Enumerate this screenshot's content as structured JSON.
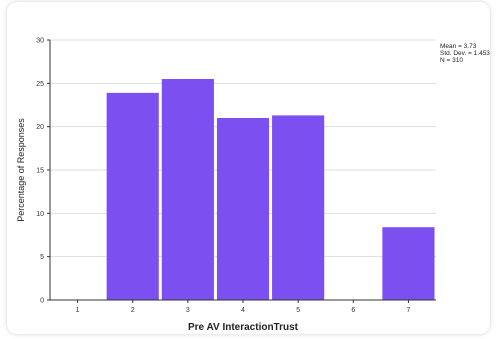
{
  "chart_data": {
    "type": "bar",
    "categories": [
      "1",
      "2",
      "3",
      "4",
      "5",
      "6",
      "7"
    ],
    "values": [
      0,
      23.9,
      25.5,
      21.0,
      21.3,
      0,
      8.4
    ],
    "xlabel": "Pre AV InteractionTrust",
    "ylabel": "Percentage of Responses",
    "ylim": [
      0,
      30
    ],
    "yticks": [
      "0",
      "5",
      "10",
      "15",
      "20",
      "25",
      "30"
    ],
    "grid": true,
    "bar_color": "#7b4ff0",
    "stats": {
      "mean": "Mean = 3.73",
      "sd": "Std. Dev. = 1.453",
      "n": "N = 310"
    }
  }
}
